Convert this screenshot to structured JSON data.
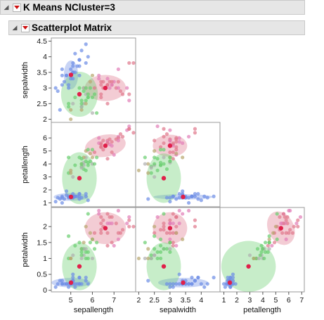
{
  "report": {
    "outline_title": "K Means NCluster=3",
    "section_title": "Scatterplot Matrix"
  },
  "chart_data": {
    "type": "scatter",
    "subtype": "scatterplot-matrix-lower-triangle",
    "variables": [
      "sepallength",
      "sepalwidth",
      "petallength",
      "petalwidth"
    ],
    "axis_labels": {
      "x": [
        "sepallength",
        "sepalwidth",
        "petallength"
      ],
      "y": [
        "sepalwidth",
        "petallength",
        "petalwidth"
      ]
    },
    "ranges": {
      "sepallength": [
        4.1,
        8.0
      ],
      "sepalwidth": [
        1.9,
        4.6
      ],
      "petallength": [
        0.7,
        7.2
      ],
      "petalwidth": [
        -0.05,
        2.6
      ]
    },
    "ticks": {
      "sepallength": [
        "5",
        "6",
        "7"
      ],
      "sepalwidth": [
        "2",
        "2.5",
        "3",
        "3.5",
        "4"
      ],
      "petallength": [
        "1",
        "2",
        "3",
        "4",
        "5",
        "6",
        "7"
      ],
      "sepalwidth_y": [
        "2",
        "2.5",
        "3",
        "3.5",
        "4",
        "4.5"
      ],
      "petallength_y": [
        "1",
        "2",
        "3",
        "4",
        "5",
        "6"
      ],
      "petalwidth_y": [
        "0",
        "0.5",
        "1",
        "1.5",
        "2"
      ]
    },
    "colors": {
      "cluster_1": "#6f8fe6",
      "cluster_2": "#e07a8e",
      "cluster_3": "#6ccf72",
      "center": "#e0204a",
      "pink_points": "#e27fb8",
      "olive_points": "#b9a770",
      "gray_points": "#b0b0b0"
    },
    "clusters": [
      {
        "id": 1,
        "color": "cluster_1",
        "center": [
          5.01,
          3.42,
          1.46,
          0.24
        ],
        "ellipses": {
          "0-1": {
            "rx": 0.33,
            "ry": 0.46,
            "angle": 0
          },
          "0-2": {
            "rx": 0.8,
            "ry": 0.3,
            "angle": 0
          },
          "1-2": {
            "rx": 0.95,
            "ry": 0.2,
            "angle": 0
          },
          "0-3": {
            "rx": 0.9,
            "ry": 0.15,
            "angle": 0
          },
          "1-3": {
            "rx": 0.8,
            "ry": 0.15,
            "angle": 0
          },
          "2-3": {
            "rx": 0.4,
            "ry": 0.15,
            "angle": 0
          }
        }
      },
      {
        "id": 2,
        "color": "cluster_2",
        "center": [
          6.6,
          3.0,
          5.4,
          1.95
        ],
        "ellipses": {
          "0-1": {
            "rx": 0.95,
            "ry": 0.42,
            "angle": 0
          },
          "0-2": {
            "rx": 0.95,
            "ry": 0.85,
            "angle": 10
          },
          "1-2": {
            "rx": 0.55,
            "ry": 0.85,
            "angle": 0
          },
          "0-3": {
            "rx": 0.95,
            "ry": 0.5,
            "angle": 0
          },
          "1-3": {
            "rx": 0.55,
            "ry": 0.5,
            "angle": 0
          },
          "2-3": {
            "rx": 1.0,
            "ry": 0.55,
            "angle": 25
          }
        }
      },
      {
        "id": 3,
        "color": "cluster_3",
        "center": [
          5.4,
          2.8,
          2.9,
          0.75
        ],
        "ellipses": {
          "0-1": {
            "rx": 0.85,
            "ry": 0.72,
            "angle": 0
          },
          "0-2": {
            "rx": 0.8,
            "ry": 2.0,
            "angle": 0
          },
          "1-2": {
            "rx": 0.55,
            "ry": 1.9,
            "angle": 0
          },
          "0-3": {
            "rx": 0.8,
            "ry": 0.75,
            "angle": 0
          },
          "1-3": {
            "rx": 0.55,
            "ry": 0.75,
            "angle": 0
          },
          "2-3": {
            "rx": 2.1,
            "ry": 0.8,
            "angle": 0
          }
        }
      }
    ],
    "points": [
      [
        5.1,
        3.5,
        1.4,
        0.2,
        1
      ],
      [
        4.9,
        3.0,
        1.4,
        0.2,
        1
      ],
      [
        4.7,
        3.2,
        1.3,
        0.2,
        1
      ],
      [
        4.6,
        3.1,
        1.5,
        0.2,
        1
      ],
      [
        5.0,
        3.6,
        1.4,
        0.2,
        1
      ],
      [
        5.4,
        3.9,
        1.7,
        0.4,
        1
      ],
      [
        4.6,
        3.4,
        1.4,
        0.3,
        1
      ],
      [
        5.0,
        3.4,
        1.5,
        0.2,
        1
      ],
      [
        4.4,
        2.9,
        1.4,
        0.2,
        1
      ],
      [
        4.9,
        3.1,
        1.5,
        0.1,
        1
      ],
      [
        5.4,
        3.7,
        1.5,
        0.2,
        1
      ],
      [
        4.8,
        3.4,
        1.6,
        0.2,
        1
      ],
      [
        4.3,
        3.0,
        1.1,
        0.1,
        1
      ],
      [
        5.8,
        4.0,
        1.2,
        0.2,
        1
      ],
      [
        5.7,
        4.4,
        1.5,
        0.4,
        1
      ],
      [
        5.4,
        3.9,
        1.3,
        0.4,
        1
      ],
      [
        5.1,
        3.5,
        1.4,
        0.3,
        1
      ],
      [
        5.7,
        3.8,
        1.7,
        0.3,
        1
      ],
      [
        5.1,
        3.8,
        1.5,
        0.3,
        1
      ],
      [
        5.4,
        3.4,
        1.7,
        0.2,
        1
      ],
      [
        5.1,
        3.7,
        1.5,
        0.4,
        1
      ],
      [
        4.6,
        3.6,
        1.0,
        0.2,
        1
      ],
      [
        5.1,
        3.3,
        1.7,
        0.5,
        1
      ],
      [
        4.8,
        3.4,
        1.9,
        0.2,
        1
      ],
      [
        5.2,
        3.5,
        1.5,
        0.2,
        1
      ],
      [
        5.2,
        4.1,
        1.5,
        0.1,
        1
      ],
      [
        5.5,
        4.2,
        1.4,
        0.2,
        1
      ],
      [
        4.5,
        2.3,
        1.3,
        0.3,
        1
      ],
      [
        5.3,
        3.7,
        1.5,
        0.2,
        1
      ],
      [
        5.0,
        3.3,
        1.4,
        0.2,
        1
      ],
      [
        7.0,
        3.2,
        4.7,
        1.4,
        2
      ],
      [
        6.9,
        3.1,
        4.9,
        1.5,
        2
      ],
      [
        6.7,
        3.1,
        4.4,
        1.4,
        2
      ],
      [
        6.3,
        3.3,
        6.0,
        2.5,
        2
      ],
      [
        7.1,
        3.0,
        5.9,
        2.1,
        2
      ],
      [
        6.5,
        3.0,
        5.8,
        2.2,
        2
      ],
      [
        7.6,
        3.0,
        6.6,
        2.1,
        2
      ],
      [
        7.3,
        2.9,
        6.3,
        1.8,
        2
      ],
      [
        6.7,
        2.5,
        5.8,
        1.8,
        2
      ],
      [
        7.2,
        3.6,
        6.1,
        2.5,
        2
      ],
      [
        6.5,
        3.2,
        5.1,
        2.0,
        2
      ],
      [
        6.4,
        2.7,
        5.3,
        1.9,
        2
      ],
      [
        6.8,
        3.0,
        5.5,
        2.1,
        2
      ],
      [
        6.4,
        3.2,
        5.3,
        2.3,
        2
      ],
      [
        7.7,
        3.8,
        6.7,
        2.2,
        2
      ],
      [
        7.7,
        2.6,
        6.9,
        2.3,
        2
      ],
      [
        6.9,
        3.2,
        5.7,
        2.3,
        2
      ],
      [
        7.7,
        2.8,
        6.7,
        2.0,
        2
      ],
      [
        6.7,
        3.3,
        5.7,
        2.1,
        2
      ],
      [
        7.2,
        3.2,
        6.0,
        1.8,
        2
      ],
      [
        6.4,
        2.8,
        5.6,
        2.1,
        2
      ],
      [
        7.2,
        3.0,
        5.8,
        1.6,
        2
      ],
      [
        7.4,
        2.8,
        6.1,
        1.9,
        2
      ],
      [
        7.9,
        3.8,
        6.4,
        2.0,
        2
      ],
      [
        6.3,
        3.4,
        5.6,
        2.4,
        2
      ],
      [
        6.1,
        3.0,
        4.9,
        1.8,
        2
      ],
      [
        6.4,
        3.1,
        5.5,
        1.8,
        2
      ],
      [
        6.9,
        3.1,
        5.4,
        2.1,
        2
      ],
      [
        6.7,
        3.1,
        5.6,
        2.4,
        2
      ],
      [
        6.8,
        3.2,
        5.9,
        2.3,
        2
      ],
      [
        5.5,
        2.3,
        4.0,
        1.3,
        3
      ],
      [
        5.7,
        2.8,
        4.5,
        1.3,
        3
      ],
      [
        4.9,
        2.4,
        3.3,
        1.0,
        3
      ],
      [
        5.2,
        2.7,
        3.9,
        1.4,
        3
      ],
      [
        5.0,
        2.0,
        3.5,
        1.0,
        3
      ],
      [
        5.9,
        3.0,
        4.2,
        1.5,
        3
      ],
      [
        6.0,
        2.2,
        4.0,
        1.0,
        3
      ],
      [
        5.6,
        2.9,
        3.6,
        1.3,
        3
      ],
      [
        5.6,
        3.0,
        4.5,
        1.5,
        3
      ],
      [
        5.8,
        2.7,
        4.1,
        1.0,
        3
      ],
      [
        6.2,
        2.2,
        4.5,
        1.5,
        3
      ],
      [
        5.6,
        2.5,
        3.9,
        1.1,
        3
      ],
      [
        5.9,
        3.2,
        4.8,
        1.8,
        3
      ],
      [
        6.1,
        2.8,
        4.0,
        1.3,
        3
      ],
      [
        5.7,
        2.6,
        3.5,
        1.0,
        3
      ],
      [
        5.5,
        2.4,
        3.8,
        1.1,
        3
      ],
      [
        5.5,
        2.4,
        3.7,
        1.0,
        3
      ],
      [
        5.8,
        2.7,
        3.9,
        1.2,
        3
      ],
      [
        6.0,
        2.7,
        5.1,
        1.6,
        3
      ],
      [
        5.4,
        3.0,
        4.5,
        1.5,
        3
      ],
      [
        6.0,
        3.4,
        4.5,
        1.6,
        3
      ],
      [
        5.6,
        3.0,
        4.1,
        1.3,
        3
      ],
      [
        5.5,
        2.5,
        4.0,
        1.3,
        3
      ],
      [
        5.5,
        2.6,
        4.4,
        1.2,
        3
      ],
      [
        5.0,
        2.3,
        3.3,
        1.0,
        3
      ],
      [
        5.7,
        3.0,
        4.2,
        1.2,
        3
      ],
      [
        5.1,
        2.5,
        3.0,
        1.1,
        3
      ],
      [
        4.9,
        2.5,
        4.5,
        1.7,
        3
      ],
      [
        5.7,
        2.5,
        5.0,
        2.0,
        3
      ],
      [
        5.8,
        2.8,
        5.1,
        2.4,
        3
      ]
    ]
  }
}
